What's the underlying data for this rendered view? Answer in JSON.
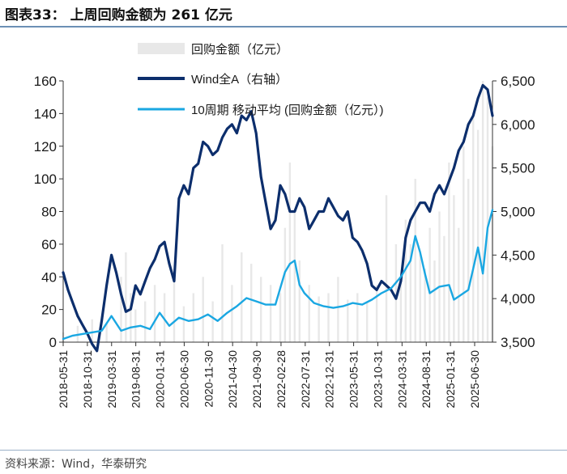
{
  "title": "图表33：  上周回购金额为 261 亿元",
  "source": "资料来源：Wind，华泰研究",
  "colors": {
    "buyback": "#e8e8e8",
    "wind": "#0c2e6c",
    "ma": "#1aa7e2",
    "axis": "#333333",
    "rule": "#6b8fb5"
  },
  "chart_data": {
    "type": "bar+line",
    "title": "上周回购金额为 261 亿元",
    "x_tick_labels": [
      "2018-05-31",
      "2018-10-31",
      "2019-03-31",
      "2019-08-31",
      "2020-01-31",
      "2020-06-30",
      "2020-11-30",
      "2021-04-30",
      "2021-09-30",
      "2022-02-28",
      "2022-07-31",
      "2022-12-31",
      "2023-05-31",
      "2023-10-31",
      "2024-03-31",
      "2024-08-31",
      "2025-01-31",
      "2025-06-30"
    ],
    "x_range": [
      "2018-05-31",
      "2025-10-31"
    ],
    "y_left": {
      "label": "回购金额（亿元）",
      "ylim": [
        0,
        160
      ],
      "ticks": [
        0,
        20,
        40,
        60,
        80,
        100,
        120,
        140,
        160
      ]
    },
    "y_right": {
      "label": "Wind全A（右轴）",
      "ylim": [
        3500,
        6500
      ],
      "ticks": [
        "3,500",
        "4,000",
        "4,500",
        "5,000",
        "5,500",
        "6,000",
        "6,500"
      ],
      "tick_values": [
        3500,
        4000,
        4500,
        5000,
        5500,
        6000,
        6500
      ]
    },
    "legend": [
      {
        "name": "回购金额（亿元）",
        "kind": "bar"
      },
      {
        "name": "Wind全A（右轴）",
        "kind": "line-dark"
      },
      {
        "name": "10周期 移动平均 (回购金额（亿元）)",
        "kind": "line-light"
      }
    ],
    "series": [
      {
        "name": "Wind全A（右轴）",
        "axis": "right",
        "x_months": [
          0,
          1,
          2,
          3,
          4,
          5,
          6,
          7,
          8,
          9,
          10,
          11,
          12,
          13,
          14,
          15,
          16,
          17,
          18,
          19,
          20,
          21,
          22,
          23,
          24,
          25,
          26,
          27,
          28,
          29,
          30,
          31,
          32,
          33,
          34,
          35,
          36,
          37,
          38,
          39,
          40,
          41,
          42,
          43,
          44,
          45,
          46,
          47,
          48,
          49,
          50,
          51,
          52,
          53,
          54,
          55,
          56,
          57,
          58,
          59,
          60,
          61,
          62,
          63,
          64,
          65,
          66,
          67,
          68,
          69,
          70,
          71,
          72,
          73,
          74,
          75,
          76,
          77,
          78,
          79,
          80,
          81,
          82,
          83,
          84,
          85,
          86,
          87,
          88,
          89
        ],
        "values": [
          4300,
          4100,
          3950,
          3800,
          3700,
          3600,
          3480,
          3400,
          3750,
          4150,
          4500,
          4300,
          4050,
          3850,
          3880,
          4150,
          4050,
          4200,
          4350,
          4450,
          4600,
          4650,
          4400,
          4200,
          5150,
          5300,
          5200,
          5500,
          5550,
          5800,
          5750,
          5650,
          5700,
          5850,
          5950,
          6000,
          5900,
          6100,
          6050,
          6150,
          5900,
          5400,
          5100,
          4800,
          4900,
          5300,
          5200,
          5000,
          5000,
          5150,
          5050,
          4800,
          4900,
          5000,
          5000,
          5150,
          5050,
          4950,
          4900,
          5000,
          4700,
          4650,
          4550,
          4400,
          4150,
          4100,
          4200,
          4150,
          4100,
          4000,
          4200,
          4700,
          4900,
          5000,
          5100,
          5100,
          5000,
          5200,
          5300,
          5200,
          5350,
          5500,
          5700,
          5800,
          6000,
          6100,
          6300,
          6450,
          6400,
          6100
        ]
      },
      {
        "name": "10周期 移动平均 (回购金额（亿元）)",
        "axis": "left",
        "x_months": [
          0,
          2,
          4,
          6,
          8,
          10,
          12,
          14,
          16,
          18,
          20,
          22,
          24,
          26,
          28,
          30,
          32,
          34,
          36,
          38,
          40,
          42,
          44,
          46,
          47,
          48,
          49,
          50,
          52,
          54,
          56,
          58,
          60,
          62,
          64,
          66,
          68,
          70,
          72,
          73,
          74,
          75,
          76,
          78,
          80,
          81,
          82,
          84,
          85,
          86,
          87,
          88,
          89
        ],
        "values": [
          2,
          4,
          5,
          6,
          7,
          16,
          7,
          9,
          10,
          8,
          18,
          10,
          15,
          13,
          14,
          17,
          13,
          18,
          22,
          27,
          25,
          23,
          23,
          43,
          48,
          50,
          35,
          30,
          24,
          22,
          21,
          22,
          24,
          23,
          26,
          30,
          33,
          40,
          50,
          65,
          55,
          42,
          30,
          34,
          35,
          26,
          28,
          32,
          45,
          58,
          42,
          70,
          81
        ]
      }
    ],
    "buyback_bars": {
      "name": "回购金额（亿元）",
      "axis": "left",
      "note": "daily bars, values read approximately",
      "x_months": [
        0,
        3,
        6,
        9,
        12,
        13,
        14,
        15,
        17,
        19,
        21,
        23,
        25,
        27,
        29,
        31,
        33,
        35,
        37,
        39,
        41,
        43,
        45,
        46,
        47,
        48,
        49,
        51,
        53,
        55,
        57,
        59,
        61,
        63,
        65,
        67,
        69,
        70,
        71,
        72,
        73,
        74,
        75,
        76,
        77,
        78,
        79,
        80,
        81,
        82,
        83,
        84,
        85,
        86,
        87,
        88,
        89
      ],
      "values": [
        6,
        10,
        14,
        12,
        40,
        55,
        30,
        20,
        25,
        35,
        30,
        45,
        22,
        30,
        40,
        25,
        60,
        35,
        55,
        48,
        40,
        35,
        30,
        70,
        110,
        80,
        50,
        35,
        28,
        30,
        40,
        26,
        30,
        25,
        35,
        90,
        60,
        40,
        75,
        60,
        100,
        55,
        45,
        70,
        50,
        80,
        65,
        110,
        90,
        70,
        120,
        100,
        140,
        130,
        160,
        150,
        120
      ]
    }
  }
}
